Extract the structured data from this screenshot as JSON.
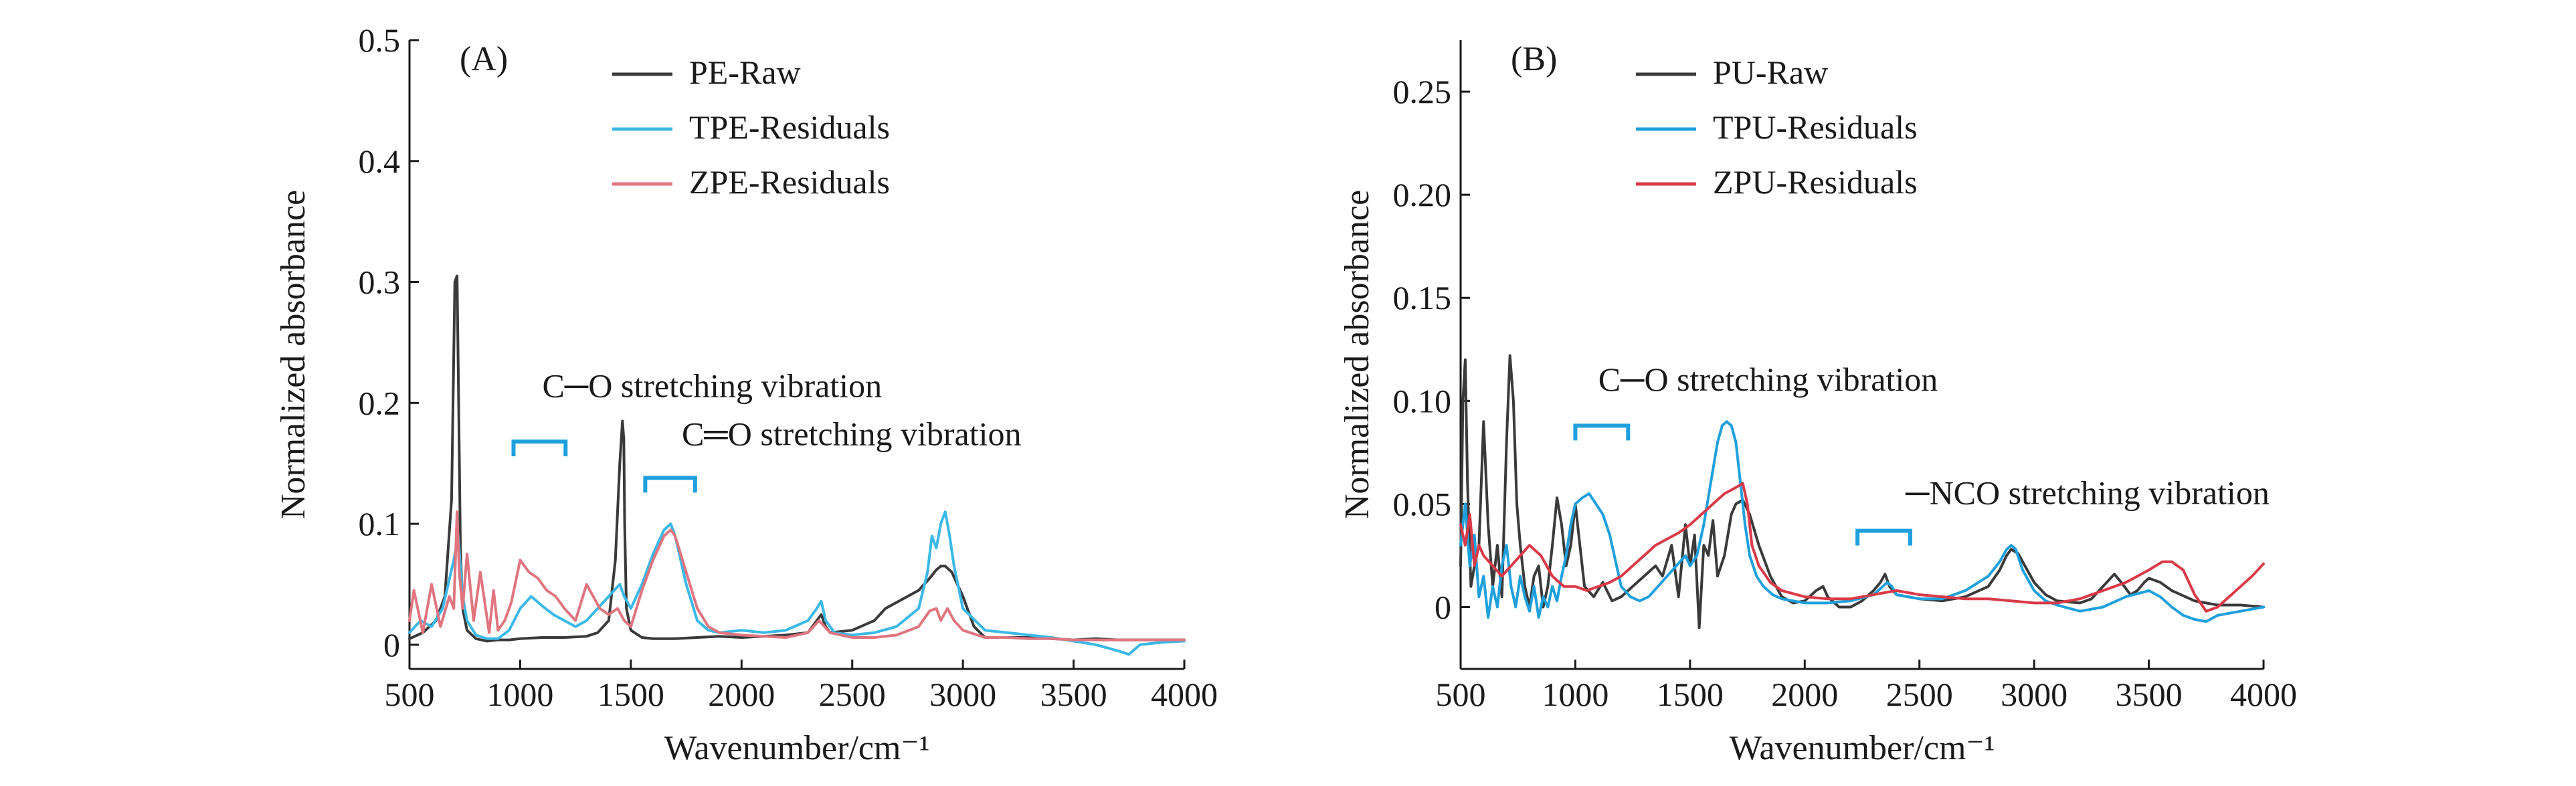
{
  "chart_data": [
    {
      "panel_label": "(A)",
      "type": "line",
      "title": "",
      "xlabel": "Wavenumber/cm⁻¹",
      "ylabel": "Normalized absorbance",
      "xlim": [
        500,
        4000
      ],
      "ylim": [
        -0.02,
        0.5
      ],
      "x_ticks": [
        500,
        1000,
        1500,
        2000,
        2500,
        3000,
        3500,
        4000
      ],
      "x_tick_labels": [
        "500",
        "1000",
        "1500",
        "2000",
        "2500",
        "3000",
        "3500",
        "4000"
      ],
      "y_ticks": [
        0,
        0.1,
        0.2,
        0.3,
        0.4,
        0.5
      ],
      "y_tick_labels": [
        "0",
        "0.1",
        "0.2",
        "0.3",
        "0.4",
        "0.5"
      ],
      "grid": false,
      "legend_position": "top-center",
      "series": [
        {
          "name": "PE-Raw",
          "color": "#3a3a3a",
          "x": [
            500,
            560,
            620,
            660,
            690,
            705,
            715,
            722,
            730,
            740,
            760,
            800,
            850,
            900,
            950,
            1000,
            1100,
            1200,
            1300,
            1350,
            1400,
            1430,
            1450,
            1462,
            1468,
            1472,
            1480,
            1500,
            1550,
            1600,
            1700,
            1800,
            1900,
            2000,
            2100,
            2200,
            2300,
            2340,
            2360,
            2380,
            2400,
            2500,
            2600,
            2650,
            2700,
            2800,
            2850,
            2880,
            2900,
            2920,
            2950,
            3000,
            3050,
            3100,
            3200,
            3300,
            3400,
            3500,
            3600,
            3700,
            3800,
            3900,
            4000
          ],
          "y": [
            0.005,
            0.01,
            0.02,
            0.04,
            0.12,
            0.3,
            0.305,
            0.2,
            0.08,
            0.03,
            0.012,
            0.005,
            0.003,
            0.004,
            0.004,
            0.005,
            0.006,
            0.006,
            0.007,
            0.01,
            0.02,
            0.07,
            0.15,
            0.185,
            0.17,
            0.1,
            0.03,
            0.012,
            0.006,
            0.005,
            0.005,
            0.006,
            0.007,
            0.006,
            0.007,
            0.008,
            0.01,
            0.02,
            0.025,
            0.015,
            0.01,
            0.012,
            0.02,
            0.03,
            0.035,
            0.045,
            0.055,
            0.062,
            0.065,
            0.065,
            0.06,
            0.04,
            0.015,
            0.006,
            0.006,
            0.006,
            0.005,
            0.004,
            0.005,
            0.004,
            0.004,
            0.004,
            0.004
          ]
        },
        {
          "name": "TPE-Residuals",
          "color": "#3cb8e6",
          "x": [
            500,
            550,
            600,
            650,
            700,
            720,
            740,
            760,
            800,
            850,
            900,
            950,
            1000,
            1050,
            1100,
            1150,
            1200,
            1250,
            1300,
            1350,
            1400,
            1450,
            1470,
            1500,
            1550,
            1600,
            1650,
            1680,
            1700,
            1750,
            1800,
            1850,
            1900,
            2000,
            2100,
            2200,
            2300,
            2340,
            2360,
            2380,
            2420,
            2500,
            2600,
            2700,
            2800,
            2840,
            2860,
            2880,
            2900,
            2920,
            2940,
            2960,
            3000,
            3100,
            3200,
            3300,
            3400,
            3500,
            3600,
            3700,
            3750,
            3800,
            3900,
            4000
          ],
          "y": [
            0.01,
            0.02,
            0.015,
            0.03,
            0.07,
            0.09,
            0.04,
            0.02,
            0.008,
            0.005,
            0.005,
            0.012,
            0.03,
            0.04,
            0.032,
            0.025,
            0.02,
            0.015,
            0.02,
            0.03,
            0.04,
            0.05,
            0.04,
            0.03,
            0.05,
            0.075,
            0.095,
            0.1,
            0.09,
            0.05,
            0.02,
            0.012,
            0.01,
            0.012,
            0.01,
            0.012,
            0.02,
            0.03,
            0.036,
            0.02,
            0.01,
            0.008,
            0.01,
            0.015,
            0.03,
            0.06,
            0.09,
            0.08,
            0.1,
            0.11,
            0.09,
            0.065,
            0.03,
            0.012,
            0.01,
            0.008,
            0.006,
            0.003,
            0.0,
            -0.005,
            -0.008,
            0.0,
            0.002,
            0.003
          ]
        },
        {
          "name": "ZPE-Residuals",
          "color": "#e07580",
          "x": [
            500,
            520,
            560,
            600,
            640,
            680,
            700,
            715,
            725,
            740,
            760,
            790,
            820,
            860,
            880,
            900,
            930,
            960,
            1000,
            1040,
            1080,
            1120,
            1160,
            1200,
            1250,
            1300,
            1330,
            1360,
            1400,
            1440,
            1470,
            1500,
            1550,
            1600,
            1650,
            1680,
            1700,
            1750,
            1800,
            1850,
            1900,
            2000,
            2100,
            2200,
            2300,
            2350,
            2400,
            2500,
            2600,
            2700,
            2800,
            2850,
            2880,
            2900,
            2930,
            2960,
            3000,
            3100,
            3200,
            3300,
            3400,
            3500,
            3600,
            3700,
            3800,
            3900,
            4000
          ],
          "y": [
            0.02,
            0.045,
            0.01,
            0.05,
            0.015,
            0.04,
            0.03,
            0.11,
            0.06,
            0.03,
            0.075,
            0.02,
            0.06,
            0.01,
            0.045,
            0.012,
            0.02,
            0.035,
            0.07,
            0.06,
            0.055,
            0.045,
            0.04,
            0.03,
            0.02,
            0.05,
            0.04,
            0.03,
            0.025,
            0.03,
            0.02,
            0.015,
            0.045,
            0.07,
            0.09,
            0.095,
            0.09,
            0.06,
            0.03,
            0.015,
            0.01,
            0.008,
            0.007,
            0.006,
            0.01,
            0.02,
            0.01,
            0.006,
            0.006,
            0.008,
            0.015,
            0.028,
            0.03,
            0.02,
            0.03,
            0.02,
            0.012,
            0.006,
            0.006,
            0.005,
            0.005,
            0.004,
            0.004,
            0.004,
            0.004,
            0.004,
            0.004
          ]
        }
      ],
      "annotations": [
        {
          "text": "C─O stretching vibration",
          "x": 1100,
          "y": 0.205,
          "bracket": [
            970,
            1205
          ],
          "bracket_y": 0.168,
          "color": "#1fa0dc"
        },
        {
          "text": "C═O stretching vibration",
          "x": 1730,
          "y": 0.165,
          "bracket": [
            1565,
            1790
          ],
          "bracket_y": 0.138,
          "color": "#1fa0dc"
        }
      ]
    },
    {
      "panel_label": "(B)",
      "type": "line",
      "title": "",
      "xlabel": "Wavenumber/cm⁻¹",
      "ylabel": "Normalized absorbance",
      "xlim": [
        500,
        4000
      ],
      "ylim": [
        -0.03,
        0.275
      ],
      "x_ticks": [
        500,
        1000,
        1500,
        2000,
        2500,
        3000,
        3500,
        4000
      ],
      "x_tick_labels": [
        "500",
        "1000",
        "1500",
        "2000",
        "2500",
        "3000",
        "3500",
        "4000"
      ],
      "y_ticks": [
        0,
        0.05,
        0.1,
        0.15,
        0.2,
        0.25
      ],
      "y_tick_labels": [
        "0",
        "0.05",
        "0.10",
        "0.15",
        "0.20",
        "0.25"
      ],
      "grid": false,
      "legend_position": "top-center",
      "series": [
        {
          "name": "PU-Raw",
          "color": "#3a3a3a",
          "x": [
            500,
            510,
            520,
            530,
            545,
            560,
            580,
            600,
            620,
            640,
            660,
            680,
            700,
            715,
            730,
            745,
            760,
            780,
            800,
            820,
            840,
            860,
            880,
            900,
            920,
            940,
            960,
            980,
            1000,
            1040,
            1080,
            1120,
            1160,
            1200,
            1250,
            1300,
            1350,
            1380,
            1420,
            1450,
            1480,
            1500,
            1520,
            1540,
            1560,
            1580,
            1600,
            1620,
            1650,
            1680,
            1700,
            1730,
            1760,
            1800,
            1850,
            1900,
            1950,
            2000,
            2050,
            2080,
            2100,
            2150,
            2200,
            2250,
            2300,
            2330,
            2350,
            2370,
            2400,
            2500,
            2600,
            2700,
            2800,
            2850,
            2880,
            2900,
            2930,
            2960,
            3000,
            3050,
            3100,
            3200,
            3250,
            3300,
            3350,
            3380,
            3420,
            3450,
            3480,
            3500,
            3550,
            3600,
            3700,
            3800,
            3900,
            4000
          ],
          "y": [
            0.02,
            0.1,
            0.12,
            0.06,
            0.01,
            0.02,
            0.03,
            0.09,
            0.04,
            0.01,
            0.03,
            0.005,
            0.08,
            0.122,
            0.1,
            0.05,
            0.03,
            0.01,
            0.0,
            0.015,
            0.02,
            0.0,
            0.01,
            0.03,
            0.053,
            0.04,
            0.02,
            0.03,
            0.05,
            0.01,
            0.005,
            0.012,
            0.003,
            0.005,
            0.01,
            0.015,
            0.02,
            0.015,
            0.03,
            0.005,
            0.04,
            0.02,
            0.035,
            -0.01,
            0.03,
            0.025,
            0.042,
            0.015,
            0.025,
            0.045,
            0.05,
            0.052,
            0.045,
            0.03,
            0.015,
            0.005,
            0.002,
            0.003,
            0.008,
            0.01,
            0.005,
            0.0,
            0.0,
            0.003,
            0.008,
            0.012,
            0.016,
            0.01,
            0.006,
            0.004,
            0.003,
            0.005,
            0.01,
            0.018,
            0.025,
            0.028,
            0.026,
            0.02,
            0.012,
            0.006,
            0.003,
            0.002,
            0.004,
            0.01,
            0.016,
            0.012,
            0.006,
            0.008,
            0.012,
            0.014,
            0.012,
            0.008,
            0.003,
            0.001,
            0.001,
            0.0
          ]
        },
        {
          "name": "TPU-Residuals",
          "color": "#1fa0dc",
          "x": [
            500,
            520,
            540,
            560,
            580,
            600,
            620,
            640,
            660,
            680,
            700,
            720,
            740,
            760,
            780,
            800,
            820,
            840,
            860,
            880,
            900,
            920,
            940,
            960,
            980,
            1000,
            1030,
            1060,
            1090,
            1120,
            1150,
            1180,
            1200,
            1240,
            1280,
            1320,
            1360,
            1400,
            1440,
            1480,
            1500,
            1530,
            1560,
            1590,
            1620,
            1640,
            1660,
            1680,
            1700,
            1720,
            1740,
            1760,
            1790,
            1820,
            1860,
            1900,
            1950,
            2000,
            2100,
            2200,
            2300,
            2340,
            2360,
            2380,
            2400,
            2500,
            2600,
            2700,
            2800,
            2850,
            2880,
            2900,
            2920,
            2950,
            3000,
            3050,
            3100,
            3200,
            3300,
            3400,
            3500,
            3550,
            3600,
            3650,
            3700,
            3750,
            3800,
            3900,
            4000
          ],
          "y": [
            0.03,
            0.05,
            0.02,
            0.035,
            0.005,
            0.015,
            -0.005,
            0.01,
            0.0,
            0.02,
            0.03,
            0.01,
            0.0,
            0.015,
            0.005,
            -0.002,
            0.01,
            -0.005,
            0.005,
            0.0,
            0.01,
            0.003,
            0.015,
            0.025,
            0.04,
            0.05,
            0.053,
            0.055,
            0.05,
            0.045,
            0.035,
            0.02,
            0.01,
            0.005,
            0.003,
            0.005,
            0.01,
            0.015,
            0.02,
            0.025,
            0.02,
            0.025,
            0.04,
            0.06,
            0.08,
            0.088,
            0.09,
            0.088,
            0.08,
            0.06,
            0.04,
            0.025,
            0.015,
            0.01,
            0.006,
            0.004,
            0.003,
            0.002,
            0.002,
            0.003,
            0.006,
            0.01,
            0.012,
            0.01,
            0.006,
            0.004,
            0.004,
            0.008,
            0.015,
            0.022,
            0.028,
            0.03,
            0.028,
            0.018,
            0.008,
            0.003,
            0.001,
            -0.002,
            0.0,
            0.005,
            0.008,
            0.005,
            0.0,
            -0.004,
            -0.006,
            -0.007,
            -0.004,
            -0.002,
            0.0
          ]
        },
        {
          "name": "ZPU-Residuals",
          "color": "#d93a48",
          "x": [
            500,
            520,
            540,
            560,
            580,
            600,
            640,
            680,
            720,
            760,
            800,
            850,
            900,
            950,
            1000,
            1050,
            1100,
            1150,
            1200,
            1250,
            1300,
            1350,
            1400,
            1450,
            1500,
            1550,
            1600,
            1650,
            1700,
            1730,
            1750,
            1770,
            1800,
            1850,
            1900,
            2000,
            2100,
            2200,
            2300,
            2400,
            2500,
            2600,
            2700,
            2800,
            2900,
            3000,
            3100,
            3200,
            3300,
            3400,
            3500,
            3560,
            3600,
            3650,
            3700,
            3750,
            3800,
            3850,
            3900,
            3950,
            4000
          ],
          "y": [
            0.04,
            0.03,
            0.045,
            0.02,
            0.03,
            0.025,
            0.02,
            0.015,
            0.02,
            0.025,
            0.03,
            0.025,
            0.015,
            0.01,
            0.01,
            0.008,
            0.01,
            0.012,
            0.015,
            0.02,
            0.025,
            0.03,
            0.033,
            0.036,
            0.04,
            0.045,
            0.05,
            0.055,
            0.058,
            0.06,
            0.05,
            0.03,
            0.02,
            0.012,
            0.008,
            0.005,
            0.004,
            0.004,
            0.006,
            0.008,
            0.006,
            0.005,
            0.004,
            0.004,
            0.003,
            0.002,
            0.002,
            0.004,
            0.008,
            0.012,
            0.018,
            0.022,
            0.022,
            0.018,
            0.006,
            -0.002,
            0.0,
            0.005,
            0.01,
            0.015,
            0.021
          ]
        }
      ],
      "annotations": [
        {
          "text": "C─O stretching vibration",
          "x": 1100,
          "y": 0.105,
          "bracket": [
            1000,
            1230
          ],
          "bracket_y": 0.088,
          "color": "#1fa0dc"
        },
        {
          "text": "─NCO stretching vibration",
          "x": 2440,
          "y": 0.05,
          "bracket": [
            2230,
            2460
          ],
          "bracket_y": 0.037,
          "color": "#1fa0dc"
        }
      ]
    }
  ]
}
